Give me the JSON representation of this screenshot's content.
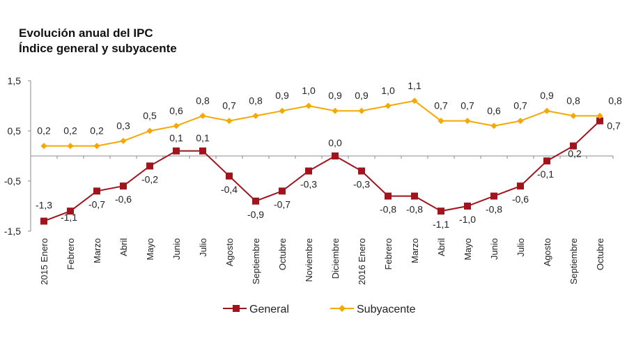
{
  "chart_data": {
    "type": "line",
    "title": "Evolución anual del IPC",
    "subtitle": "Índice general y subyacente",
    "xlabel": "",
    "ylabel": "",
    "ylim": [
      -1.5,
      1.5
    ],
    "yticks": [
      "1,5",
      "0,5",
      "-0,5",
      "-1,5"
    ],
    "ytick_values": [
      1.5,
      0.5,
      -0.5,
      -1.5
    ],
    "grid": false,
    "legend": "bottom",
    "categories": [
      "2015 Enero",
      "Febrero",
      "Marzo",
      "Abril",
      "Mayo",
      "Junio",
      "Julio",
      "Agosto",
      "Septiembre",
      "Octubre",
      "Noviembre",
      "Diciembre",
      "2016 Enero",
      "Febrero",
      "Marzo",
      "Abril",
      "Mayo",
      "Junio",
      "Julio",
      "Agosto",
      "Septiembre",
      "Octubre"
    ],
    "series": [
      {
        "name": "General",
        "color": "#a0141e",
        "marker": "square",
        "values": [
          -1.3,
          -1.1,
          -0.7,
          -0.6,
          -0.2,
          0.1,
          0.1,
          -0.4,
          -0.9,
          -0.7,
          -0.3,
          0.0,
          -0.3,
          -0.8,
          -0.8,
          -1.1,
          -1.0,
          -0.8,
          -0.6,
          -0.1,
          0.2,
          0.7
        ]
      },
      {
        "name": "Subyacente",
        "color": "#f5a800",
        "marker": "diamond",
        "values": [
          0.2,
          0.2,
          0.2,
          0.3,
          0.5,
          0.6,
          0.8,
          0.7,
          0.8,
          0.9,
          1.0,
          0.9,
          0.9,
          1.0,
          1.1,
          0.7,
          0.7,
          0.6,
          0.7,
          0.9,
          0.8,
          0.8
        ]
      }
    ]
  }
}
